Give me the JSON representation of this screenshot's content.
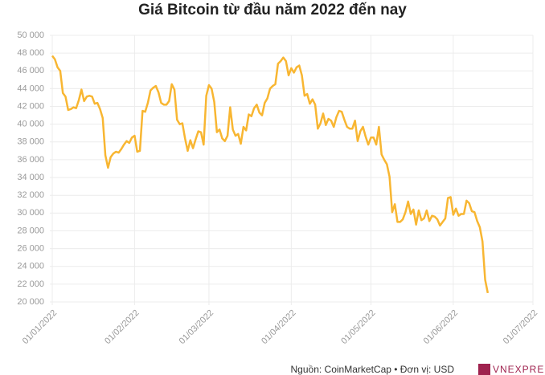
{
  "chart_data": {
    "type": "line",
    "title": "Giá Bitcoin từ đầu năm 2022 đến nay",
    "source": "Nguồn: CoinMarketCap • Đơn vị: USD",
    "logo": "VNEXPRESS",
    "x": [
      "01/01/2022",
      "02/01/2022",
      "03/01/2022",
      "04/01/2022",
      "05/01/2022",
      "06/01/2022",
      "07/01/2022",
      "08/01/2022",
      "09/01/2022",
      "10/01/2022",
      "11/01/2022",
      "12/01/2022",
      "13/01/2022",
      "14/01/2022",
      "15/01/2022",
      "16/01/2022",
      "17/01/2022",
      "18/01/2022",
      "19/01/2022",
      "20/01/2022",
      "21/01/2022",
      "22/01/2022",
      "23/01/2022",
      "24/01/2022",
      "25/01/2022",
      "26/01/2022",
      "27/01/2022",
      "28/01/2022",
      "29/01/2022",
      "30/01/2022",
      "31/01/2022",
      "01/02/2022",
      "02/02/2022",
      "03/02/2022",
      "04/02/2022",
      "05/02/2022",
      "06/02/2022",
      "07/02/2022",
      "08/02/2022",
      "09/02/2022",
      "10/02/2022",
      "11/02/2022",
      "12/02/2022",
      "13/02/2022",
      "14/02/2022",
      "15/02/2022",
      "16/02/2022",
      "17/02/2022",
      "18/02/2022",
      "19/02/2022",
      "20/02/2022",
      "21/02/2022",
      "22/02/2022",
      "23/02/2022",
      "24/02/2022",
      "25/02/2022",
      "26/02/2022",
      "27/02/2022",
      "28/02/2022",
      "01/03/2022",
      "02/03/2022",
      "03/03/2022",
      "04/03/2022",
      "05/03/2022",
      "06/03/2022",
      "07/03/2022",
      "08/03/2022",
      "09/03/2022",
      "10/03/2022",
      "11/03/2022",
      "12/03/2022",
      "13/03/2022",
      "14/03/2022",
      "15/03/2022",
      "16/03/2022",
      "17/03/2022",
      "18/03/2022",
      "19/03/2022",
      "20/03/2022",
      "21/03/2022",
      "22/03/2022",
      "23/03/2022",
      "24/03/2022",
      "25/03/2022",
      "26/03/2022",
      "27/03/2022",
      "28/03/2022",
      "29/03/2022",
      "30/03/2022",
      "31/03/2022",
      "01/04/2022",
      "02/04/2022",
      "03/04/2022",
      "04/04/2022",
      "05/04/2022",
      "06/04/2022",
      "07/04/2022",
      "08/04/2022",
      "09/04/2022",
      "10/04/2022",
      "11/04/2022",
      "12/04/2022",
      "13/04/2022",
      "14/04/2022",
      "15/04/2022",
      "16/04/2022",
      "17/04/2022",
      "18/04/2022",
      "19/04/2022",
      "20/04/2022",
      "21/04/2022",
      "22/04/2022",
      "23/04/2022",
      "24/04/2022",
      "25/04/2022",
      "26/04/2022",
      "27/04/2022",
      "28/04/2022",
      "29/04/2022",
      "30/04/2022",
      "01/05/2022",
      "02/05/2022",
      "03/05/2022",
      "04/05/2022",
      "05/05/2022",
      "06/05/2022",
      "07/05/2022",
      "08/05/2022",
      "09/05/2022",
      "10/05/2022",
      "11/05/2022",
      "12/05/2022",
      "13/05/2022",
      "14/05/2022",
      "15/05/2022",
      "16/05/2022",
      "17/05/2022",
      "18/05/2022",
      "19/05/2022",
      "20/05/2022",
      "21/05/2022",
      "22/05/2022",
      "23/05/2022",
      "24/05/2022",
      "25/05/2022",
      "26/05/2022",
      "27/05/2022",
      "28/05/2022",
      "29/05/2022",
      "30/05/2022",
      "31/05/2022",
      "01/06/2022",
      "02/06/2022",
      "03/06/2022",
      "04/06/2022",
      "05/06/2022",
      "06/06/2022",
      "07/06/2022",
      "08/06/2022",
      "09/06/2022",
      "10/06/2022",
      "11/06/2022",
      "12/06/2022",
      "13/06/2022",
      "14/06/2022"
    ],
    "values": [
      47700,
      47300,
      46400,
      46000,
      43500,
      43100,
      41600,
      41700,
      41900,
      41800,
      42700,
      43900,
      42600,
      43100,
      43200,
      43100,
      42300,
      42400,
      41700,
      40700,
      36500,
      35100,
      36300,
      36700,
      36900,
      36800,
      37200,
      37700,
      38100,
      37900,
      38500,
      38700,
      36900,
      37000,
      41500,
      41400,
      42400,
      43800,
      44100,
      44300,
      43600,
      42400,
      42200,
      42200,
      42600,
      44500,
      43900,
      40500,
      40000,
      40100,
      38400,
      37000,
      38200,
      37300,
      38300,
      39200,
      39100,
      37700,
      43200,
      44400,
      44000,
      42500,
      39100,
      39400,
      38400,
      38100,
      38700,
      41900,
      39400,
      38700,
      38900,
      37800,
      39700,
      39300,
      41100,
      40900,
      41800,
      42200,
      41300,
      41000,
      42400,
      42900,
      44000,
      44300,
      44500,
      46800,
      47100,
      47500,
      47100,
      45500,
      46300,
      45800,
      46400,
      46600,
      45500,
      43200,
      43400,
      42300,
      42800,
      42200,
      39500,
      40100,
      41200,
      39900,
      40600,
      40400,
      39700,
      40800,
      41500,
      41400,
      40500,
      39700,
      39500,
      39500,
      40400,
      38100,
      39200,
      39700,
      38600,
      37700,
      38500,
      38500,
      37700,
      39700,
      36600,
      36000,
      35500,
      34100,
      30100,
      31000,
      29000,
      29000,
      29300,
      30100,
      31300,
      29900,
      30400,
      28700,
      30300,
      29200,
      29400,
      30300,
      29100,
      29700,
      29600,
      29300,
      28600,
      29000,
      29400,
      31700,
      31800,
      29800,
      30500,
      29700,
      29900,
      29900,
      31400,
      31100,
      30200,
      30100,
      29100,
      28400,
      26800,
      22500,
      21000
    ],
    "color": "#f8b632",
    "xlim": [
      "01/01/2022",
      "01/07/2022"
    ],
    "xticks": [
      "01/01/2022",
      "01/02/2022",
      "01/03/2022",
      "01/04/2022",
      "01/05/2022",
      "01/06/2022",
      "01/07/2022"
    ],
    "ylim": [
      20000,
      50000
    ],
    "yticks": [
      {
        "value": 20000,
        "label": "20 000"
      },
      {
        "value": 22000,
        "label": "22 000"
      },
      {
        "value": 24000,
        "label": "24 000"
      },
      {
        "value": 26000,
        "label": "26 000"
      },
      {
        "value": 28000,
        "label": "28 000"
      },
      {
        "value": 30000,
        "label": "30 000"
      },
      {
        "value": 32000,
        "label": "32 000"
      },
      {
        "value": 34000,
        "label": "34 000"
      },
      {
        "value": 36000,
        "label": "36 000"
      },
      {
        "value": 38000,
        "label": "38 000"
      },
      {
        "value": 40000,
        "label": "40 000"
      },
      {
        "value": 42000,
        "label": "42 000"
      },
      {
        "value": 44000,
        "label": "44 000"
      },
      {
        "value": 46000,
        "label": "46 000"
      },
      {
        "value": 48000,
        "label": "48 000"
      },
      {
        "value": 50000,
        "label": "50 000"
      }
    ],
    "grid": true
  }
}
